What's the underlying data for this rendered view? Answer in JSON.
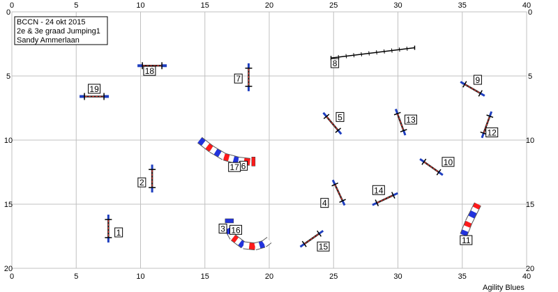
{
  "header": {
    "lines": [
      "BCCN - 24 okt 2015",
      "2e & 3e graad Jumping1",
      "Sandy Ammerlaan"
    ]
  },
  "footer": {
    "brand": "Agility Blues"
  },
  "field": {
    "x_range": [
      0,
      40
    ],
    "y_range": [
      0,
      20
    ],
    "x_ticks": [
      "0",
      "5",
      "10",
      "15",
      "20",
      "25",
      "30",
      "35",
      "40"
    ],
    "y_ticks": [
      "0",
      "5",
      "10",
      "15",
      "20"
    ]
  },
  "colors": {
    "grid": "#c0c0c0",
    "pole_red": "#e8352e",
    "pole_blue": "#1f3fbf",
    "tunnel_red": "#ff1a1a",
    "tunnel_blue": "#2233dd",
    "tunnel_white": "#ffffff"
  },
  "obstacles": [
    {
      "number": "1",
      "type": "jump",
      "x": 7.5,
      "y": 16.9,
      "angle": 90,
      "label_x": 8.3,
      "label_y": 17.2
    },
    {
      "number": "2",
      "type": "jump",
      "x": 10.9,
      "y": 13.0,
      "angle": 90,
      "label_x": 10.1,
      "label_y": 13.3
    },
    {
      "number": "3",
      "type": "label",
      "label_x": 16.4,
      "label_y": 16.9
    },
    {
      "number": "4",
      "type": "jump",
      "x": 25.4,
      "y": 14.1,
      "angle": 65,
      "label_x": 24.3,
      "label_y": 14.9
    },
    {
      "number": "5",
      "type": "jump",
      "x": 24.9,
      "y": 8.7,
      "angle": 50,
      "label_x": 25.5,
      "label_y": 8.2
    },
    {
      "number": "6",
      "type": "label",
      "label_x": 18.0,
      "label_y": 12.0
    },
    {
      "number": "7",
      "type": "jump",
      "x": 18.4,
      "y": 5.1,
      "angle": 90,
      "label_x": 17.6,
      "label_y": 5.2
    },
    {
      "number": "8",
      "type": "dogwalk",
      "x1": 24.8,
      "y1": 3.6,
      "x2": 31.3,
      "y2": 2.8,
      "label_x": 25.1,
      "label_y": 4.0
    },
    {
      "number": "9",
      "type": "jump",
      "x": 35.8,
      "y": 6.0,
      "angle": 30,
      "label_x": 36.2,
      "label_y": 5.3
    },
    {
      "number": "10",
      "type": "jump",
      "x": 32.6,
      "y": 12.1,
      "angle": 35,
      "label_x": 33.9,
      "label_y": 11.7
    },
    {
      "number": "11",
      "type": "label",
      "label_x": 35.3,
      "label_y": 17.8
    },
    {
      "number": "12",
      "type": "jump",
      "x": 36.9,
      "y": 8.8,
      "angle": -70,
      "label_x": 37.3,
      "label_y": 9.4
    },
    {
      "number": "13",
      "type": "jump",
      "x": 30.2,
      "y": 8.6,
      "angle": 70,
      "label_x": 31.0,
      "label_y": 8.4
    },
    {
      "number": "14",
      "type": "jump",
      "x": 29.0,
      "y": 14.6,
      "angle": -25,
      "label_x": 28.5,
      "label_y": 13.9
    },
    {
      "number": "15",
      "type": "jump",
      "x": 23.3,
      "y": 17.7,
      "angle": -35,
      "label_x": 24.2,
      "label_y": 18.3
    },
    {
      "number": "16",
      "type": "label",
      "label_x": 17.4,
      "label_y": 17.0
    },
    {
      "number": "17",
      "type": "label",
      "label_x": 17.3,
      "label_y": 12.1
    },
    {
      "number": "18",
      "type": "wall",
      "x": 10.9,
      "y": 4.2,
      "angle": 0,
      "label_x": 10.7,
      "label_y": 4.6
    },
    {
      "number": "19",
      "type": "wall",
      "x": 6.4,
      "y": 6.6,
      "angle": 0,
      "label_x": 6.4,
      "label_y": 6.0
    }
  ],
  "tunnels": [
    {
      "id": "tunnel-17-6",
      "points": [
        [
          14.6,
          10.0
        ],
        [
          15.5,
          10.7
        ],
        [
          16.5,
          11.3
        ],
        [
          17.6,
          11.6
        ],
        [
          18.5,
          11.7
        ]
      ],
      "end_x": 18.8,
      "end_y": 11.7
    },
    {
      "id": "tunnel-3-16",
      "points": [
        [
          16.8,
          16.9
        ],
        [
          17.2,
          17.6
        ],
        [
          18.0,
          18.2
        ],
        [
          18.9,
          18.3
        ],
        [
          19.6,
          18.1
        ],
        [
          20.0,
          17.8
        ]
      ],
      "start_x": 16.9,
      "start_y": 16.3
    },
    {
      "id": "tunnel-11",
      "points": [
        [
          35.1,
          17.4
        ],
        [
          35.5,
          16.4
        ],
        [
          35.9,
          15.6
        ],
        [
          36.2,
          15.0
        ]
      ]
    }
  ]
}
